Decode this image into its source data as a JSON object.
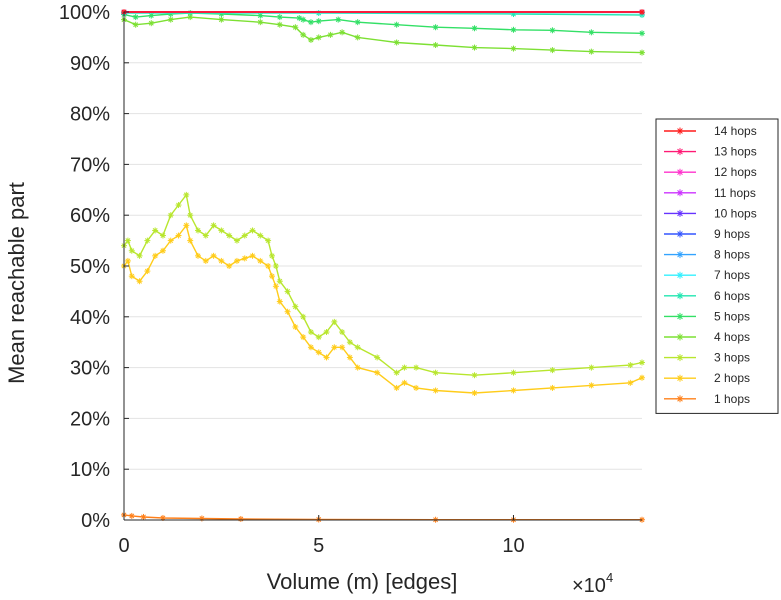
{
  "chart_data": {
    "type": "line",
    "xlabel": "Volume (m) [edges]",
    "ylabel": "Mean reachable part",
    "x_multiplier": "×10",
    "x_multiplier_exp": "4",
    "xlim": [
      0,
      13.3
    ],
    "ylim": [
      0,
      100
    ],
    "x_ticks": [
      0,
      5,
      10
    ],
    "x_tick_labels": [
      "0",
      "5",
      "10"
    ],
    "y_ticks": [
      0,
      10,
      20,
      30,
      40,
      50,
      60,
      70,
      80,
      90,
      100
    ],
    "y_tick_labels": [
      "0%",
      "10%",
      "20%",
      "30%",
      "40%",
      "50%",
      "60%",
      "70%",
      "80%",
      "90%",
      "100%"
    ],
    "grid": "horizontal",
    "legend_position": "right",
    "marker": "asterisk",
    "series": [
      {
        "name": "14 hops",
        "color": "#ff1a1a",
        "x": [
          0,
          13.3
        ],
        "y": [
          100,
          100
        ]
      },
      {
        "name": "13 hops",
        "color": "#ff1a75",
        "x": [
          0,
          13.3
        ],
        "y": [
          100,
          100
        ]
      },
      {
        "name": "12 hops",
        "color": "#ff33cc",
        "x": [
          0,
          13.3
        ],
        "y": [
          100,
          100
        ]
      },
      {
        "name": "11 hops",
        "color": "#cc33ff",
        "x": [
          0,
          13.3
        ],
        "y": [
          100,
          100
        ]
      },
      {
        "name": "10 hops",
        "color": "#6633ff",
        "x": [
          0,
          13.3
        ],
        "y": [
          100,
          100
        ]
      },
      {
        "name": "9 hops",
        "color": "#3355ff",
        "x": [
          0,
          13.3
        ],
        "y": [
          100,
          100
        ]
      },
      {
        "name": "8 hops",
        "color": "#33a3ff",
        "x": [
          0,
          13.3
        ],
        "y": [
          100,
          100
        ]
      },
      {
        "name": "7 hops",
        "color": "#33f0ff",
        "x": [
          0,
          13.3
        ],
        "y": [
          99.9,
          99.9
        ]
      },
      {
        "name": "6 hops",
        "color": "#20e6b0",
        "x": [
          0,
          5,
          10,
          13.3
        ],
        "y": [
          99.8,
          99.8,
          99.6,
          99.4
        ]
      },
      {
        "name": "5 hops",
        "color": "#33e066",
        "x": [
          0,
          0.3,
          0.7,
          1.2,
          1.7,
          2.5,
          3.5,
          4.0,
          4.5,
          4.6,
          4.8,
          5.0,
          5.5,
          6.0,
          7.0,
          8.0,
          9.0,
          10.0,
          11.0,
          12.0,
          13.3
        ],
        "y": [
          99.5,
          99.0,
          99.3,
          99.6,
          99.8,
          99.6,
          99.3,
          99.0,
          98.8,
          98.5,
          98.0,
          98.2,
          98.5,
          98.0,
          97.5,
          97.0,
          96.8,
          96.5,
          96.4,
          96.0,
          95.8
        ]
      },
      {
        "name": "4 hops",
        "color": "#7de033",
        "x": [
          0,
          0.3,
          0.7,
          1.2,
          1.7,
          2.5,
          3.5,
          4.0,
          4.4,
          4.6,
          4.8,
          5.0,
          5.3,
          5.6,
          6.0,
          7.0,
          8.0,
          9.0,
          10.0,
          11.0,
          12.0,
          13.3
        ],
        "y": [
          98.5,
          97.5,
          97.8,
          98.5,
          99.0,
          98.5,
          98.0,
          97.5,
          97.0,
          95.5,
          94.5,
          95.0,
          95.5,
          96.0,
          95.0,
          94.0,
          93.5,
          93.0,
          92.8,
          92.5,
          92.2,
          92.0
        ]
      },
      {
        "name": "3 hops",
        "color": "#b8e62e",
        "x": [
          0,
          0.1,
          0.2,
          0.4,
          0.6,
          0.8,
          1.0,
          1.2,
          1.4,
          1.6,
          1.7,
          1.9,
          2.1,
          2.3,
          2.5,
          2.7,
          2.9,
          3.1,
          3.3,
          3.5,
          3.7,
          3.8,
          3.9,
          4.0,
          4.2,
          4.4,
          4.6,
          4.8,
          5.0,
          5.2,
          5.4,
          5.6,
          5.8,
          6.0,
          6.5,
          7.0,
          7.2,
          7.5,
          8.0,
          9.0,
          10.0,
          11.0,
          12.0,
          13.0,
          13.3
        ],
        "y": [
          54,
          55,
          53,
          52,
          55,
          57,
          56,
          60,
          62,
          64,
          60,
          57,
          56,
          58,
          57,
          56,
          55,
          56,
          57,
          56,
          55,
          52,
          50,
          47,
          45,
          42,
          40,
          37,
          36,
          37,
          39,
          37,
          35,
          34,
          32,
          29,
          30,
          30,
          29,
          28.5,
          29,
          29.5,
          30,
          30.5,
          31
        ]
      },
      {
        "name": "2 hops",
        "color": "#ffcc1a",
        "x": [
          0,
          0.1,
          0.2,
          0.4,
          0.6,
          0.8,
          1.0,
          1.2,
          1.4,
          1.6,
          1.7,
          1.9,
          2.1,
          2.3,
          2.5,
          2.7,
          2.9,
          3.1,
          3.3,
          3.5,
          3.7,
          3.8,
          3.9,
          4.0,
          4.2,
          4.4,
          4.6,
          4.8,
          5.0,
          5.2,
          5.4,
          5.6,
          5.8,
          6.0,
          6.5,
          7.0,
          7.2,
          7.5,
          8.0,
          9.0,
          10.0,
          11.0,
          12.0,
          13.0,
          13.3
        ],
        "y": [
          50,
          51,
          48,
          47,
          49,
          52,
          53,
          55,
          56,
          58,
          55,
          52,
          51,
          52,
          51,
          50,
          51,
          51.5,
          52,
          51,
          50,
          48,
          46,
          43,
          41,
          38,
          36,
          34,
          33,
          32,
          34,
          34,
          32,
          30,
          29,
          26,
          27,
          26,
          25.5,
          25,
          25.5,
          26,
          26.5,
          27,
          28
        ]
      },
      {
        "name": "1 hops",
        "color": "#ff801a",
        "x": [
          0,
          0.2,
          0.5,
          1.0,
          2.0,
          3.0,
          5.0,
          8.0,
          10.0,
          13.3
        ],
        "y": [
          1.0,
          0.8,
          0.6,
          0.4,
          0.3,
          0.2,
          0.1,
          0.05,
          0.05,
          0.05
        ]
      }
    ]
  }
}
